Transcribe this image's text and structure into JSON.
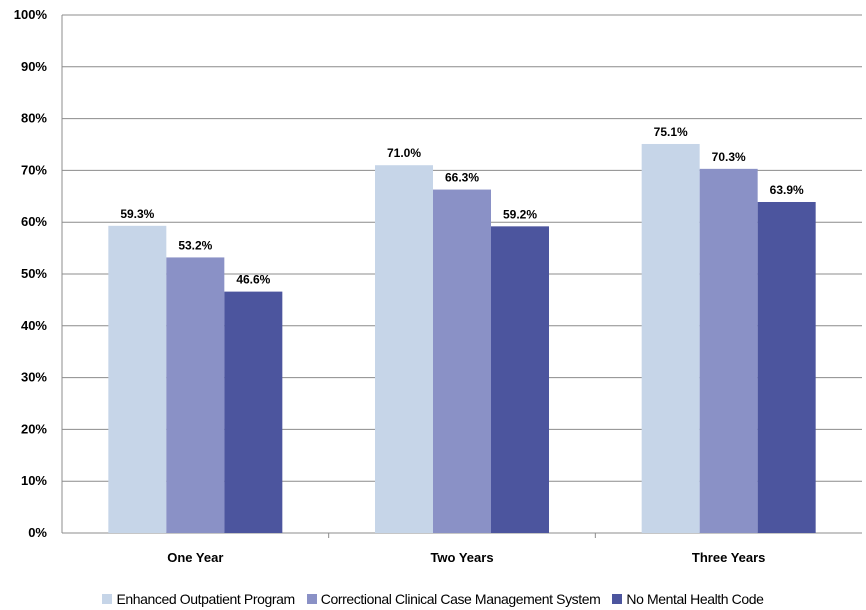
{
  "chart_data": {
    "type": "bar",
    "categories": [
      "One Year",
      "Two Years",
      "Three Years"
    ],
    "series": [
      {
        "name": "Enhanced Outpatient Program",
        "color": "#c6d5e8",
        "values": [
          59.3,
          71.0,
          75.1
        ],
        "labels": [
          "59.3%",
          "71.0%",
          "75.1%"
        ]
      },
      {
        "name": "Correctional Clinical Case Management System",
        "color": "#8a91c6",
        "values": [
          53.2,
          66.3,
          70.3
        ],
        "labels": [
          "53.2%",
          "66.3%",
          "70.3%"
        ]
      },
      {
        "name": "No Mental Health Code",
        "color": "#4c559e",
        "values": [
          46.6,
          59.2,
          63.9
        ],
        "labels": [
          "46.6%",
          "59.2%",
          "63.9%"
        ]
      }
    ],
    "ylim": [
      0,
      100
    ],
    "yticks": [
      0,
      10,
      20,
      30,
      40,
      50,
      60,
      70,
      80,
      90,
      100
    ],
    "ytick_labels": [
      "0%",
      "10%",
      "20%",
      "30%",
      "40%",
      "50%",
      "60%",
      "70%",
      "80%",
      "90%",
      "100%"
    ],
    "grid": true,
    "legend_position": "bottom",
    "title": "",
    "xlabel": "",
    "ylabel": ""
  }
}
